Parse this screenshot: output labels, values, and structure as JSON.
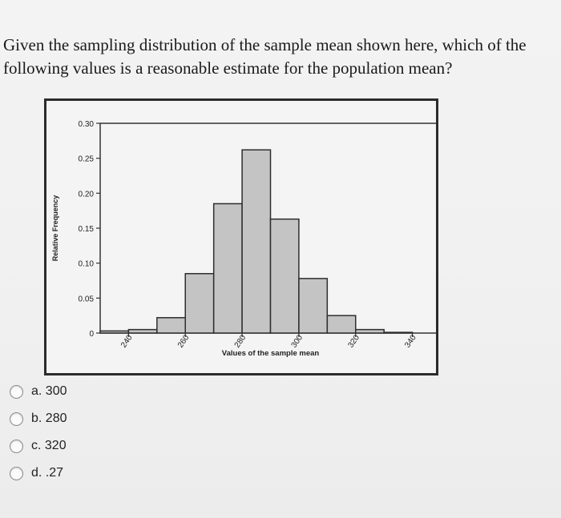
{
  "question": {
    "text": "Given the sampling distribution of the sample mean shown here, which of the following values is a reasonable estimate for the population mean?"
  },
  "options": [
    {
      "label": "a. 300"
    },
    {
      "label": "b. 280"
    },
    {
      "label": "c. 320"
    },
    {
      "label": "d. .27"
    }
  ],
  "chart_data": {
    "type": "bar",
    "xlabel": "Values of the sample mean",
    "ylabel": "Relative Frequency",
    "ylim": [
      0,
      0.3
    ],
    "xlim": [
      230,
      350
    ],
    "y_ticks": [
      "0",
      "0.05",
      "0.10",
      "0.15",
      "0.20",
      "0.25",
      "0.30"
    ],
    "y_tick_values": [
      0,
      0.05,
      0.1,
      0.15,
      0.2,
      0.25,
      0.3
    ],
    "x_ticks": [
      "240",
      "260",
      "280",
      "300",
      "320",
      "340"
    ],
    "x_tick_values": [
      240,
      260,
      280,
      300,
      320,
      340
    ],
    "bin_width": 10,
    "bins": [
      {
        "x": 235,
        "value": 0.003
      },
      {
        "x": 245,
        "value": 0.005
      },
      {
        "x": 255,
        "value": 0.022
      },
      {
        "x": 265,
        "value": 0.085
      },
      {
        "x": 275,
        "value": 0.185
      },
      {
        "x": 285,
        "value": 0.262
      },
      {
        "x": 295,
        "value": 0.163
      },
      {
        "x": 305,
        "value": 0.078
      },
      {
        "x": 315,
        "value": 0.025
      },
      {
        "x": 325,
        "value": 0.005
      },
      {
        "x": 335,
        "value": 0.001
      }
    ],
    "bar_color": "#c4c4c4",
    "grid": false
  }
}
